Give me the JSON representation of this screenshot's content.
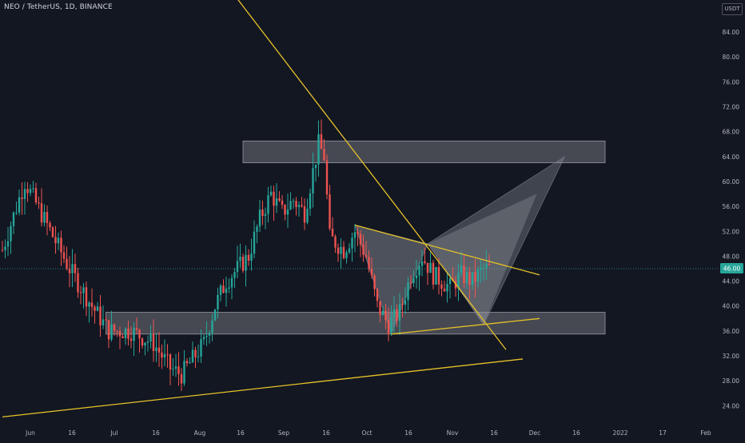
{
  "header": {
    "symbol_title": "NEO / TetherUS, 1D, BINANCE",
    "currency": "USDT"
  },
  "last_price_label": "46.00",
  "colors": {
    "background": "#131722",
    "up": "#26a69a",
    "down": "#ef5350",
    "trendline": "#e6c229",
    "zone_fill": "#ffffff",
    "pattern_fill": "#9598a1",
    "price_badge": "#26a69a"
  },
  "chart_data": {
    "type": "candlestick",
    "price_axis_ticks": [
      "84.00",
      "80.00",
      "76.00",
      "72.00",
      "68.00",
      "64.00",
      "60.00",
      "56.00",
      "52.00",
      "48.00",
      "44.00",
      "40.00",
      "36.00",
      "32.00",
      "28.00",
      "24.00"
    ],
    "time_axis_ticks": [
      "Jun",
      "16",
      "Jul",
      "16",
      "Aug",
      "16",
      "Sep",
      "16",
      "Oct",
      "16",
      "Nov",
      "16",
      "Dec",
      "16",
      "2022",
      "17",
      "Feb"
    ],
    "ylim": [
      21,
      90
    ],
    "last_price": 46.0,
    "close_path_keypoints": [
      {
        "day": 0,
        "price": 49
      },
      {
        "day": 8,
        "price": 60
      },
      {
        "day": 16,
        "price": 53
      },
      {
        "day": 24,
        "price": 46
      },
      {
        "day": 32,
        "price": 40
      },
      {
        "day": 38,
        "price": 36
      },
      {
        "day": 46,
        "price": 36
      },
      {
        "day": 54,
        "price": 34
      },
      {
        "day": 60,
        "price": 30
      },
      {
        "day": 64,
        "price": 29
      },
      {
        "day": 72,
        "price": 34
      },
      {
        "day": 76,
        "price": 40
      },
      {
        "day": 80,
        "price": 44
      },
      {
        "day": 88,
        "price": 48
      },
      {
        "day": 92,
        "price": 54
      },
      {
        "day": 96,
        "price": 58
      },
      {
        "day": 100,
        "price": 55
      },
      {
        "day": 104,
        "price": 57
      },
      {
        "day": 108,
        "price": 55
      },
      {
        "day": 113,
        "price": 66
      },
      {
        "day": 115,
        "price": 64
      },
      {
        "day": 117,
        "price": 51
      },
      {
        "day": 122,
        "price": 49
      },
      {
        "day": 126,
        "price": 52
      },
      {
        "day": 130,
        "price": 48
      },
      {
        "day": 134,
        "price": 40
      },
      {
        "day": 138,
        "price": 37
      },
      {
        "day": 142,
        "price": 39
      },
      {
        "day": 146,
        "price": 45
      },
      {
        "day": 150,
        "price": 48
      },
      {
        "day": 154,
        "price": 45
      },
      {
        "day": 160,
        "price": 43
      },
      {
        "day": 164,
        "price": 45
      },
      {
        "day": 168,
        "price": 44
      },
      {
        "day": 172,
        "price": 46
      },
      {
        "day": 174,
        "price": 46
      }
    ],
    "support_zone": {
      "price_low": 35.5,
      "price_high": 39.0,
      "day_start": 37,
      "day_end": 240
    },
    "resistance_zone": {
      "price_low": 63.0,
      "price_high": 66.5,
      "day_start": 86,
      "day_end": 240
    },
    "trendlines": [
      {
        "name": "descending",
        "from": {
          "day": 76,
          "price": 94
        },
        "to": {
          "day": 180,
          "price": 33
        }
      },
      {
        "name": "long-ascending",
        "from": {
          "day": 0,
          "price": 22.2
        },
        "to": {
          "day": 186,
          "price": 31.5
        }
      },
      {
        "name": "upper-triangle",
        "from": {
          "day": 126,
          "price": 53
        },
        "to": {
          "day": 192,
          "price": 45
        }
      },
      {
        "name": "lower-triangle",
        "from": {
          "day": 139,
          "price": 35.5
        },
        "to": {
          "day": 192,
          "price": 38
        }
      }
    ],
    "harmonic_pattern": {
      "X": {
        "day": 126,
        "price": 53
      },
      "A": {
        "day": 139,
        "price": 35.5
      },
      "B": {
        "day": 152,
        "price": 50
      },
      "C": {
        "day": 172,
        "price": 37
      },
      "D": {
        "day": 201,
        "price": 64
      },
      "D_inner": {
        "day": 191,
        "price": 58
      }
    }
  }
}
